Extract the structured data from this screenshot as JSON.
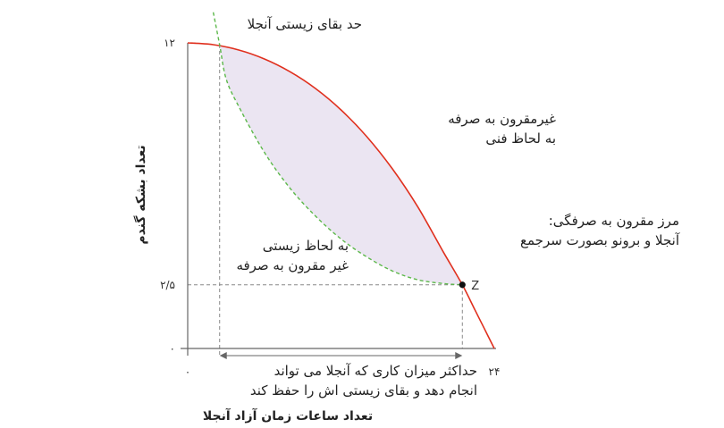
{
  "chart_data": {
    "type": "line",
    "xlabel": "تعداد ساعات زمان آزاد آنجلا",
    "ylabel": "تعداد بشکه گندم",
    "x_ticks": [
      {
        "value": 0,
        "label": "۰"
      },
      {
        "value": 24,
        "label": "۲۴"
      }
    ],
    "y_ticks": [
      {
        "value": 0,
        "label": "۰"
      },
      {
        "value": 2.5,
        "label": "۲/۵"
      },
      {
        "value": 12,
        "label": "۱۲"
      }
    ],
    "xlim": [
      0,
      24
    ],
    "ylim": [
      0,
      12
    ],
    "frontier": {
      "color": "#e0301e",
      "points": [
        [
          0,
          12
        ],
        [
          2,
          11.93
        ],
        [
          4,
          11.72
        ],
        [
          6,
          11.37
        ],
        [
          8,
          10.87
        ],
        [
          10,
          10.21
        ],
        [
          12,
          9.37
        ],
        [
          14,
          8.33
        ],
        [
          16,
          7.07
        ],
        [
          18,
          5.57
        ],
        [
          20,
          3.8
        ],
        [
          21.5,
          2.5
        ],
        [
          22.5,
          1.5
        ],
        [
          23.2,
          0.8
        ],
        [
          24,
          0
        ]
      ]
    },
    "survival_limit": {
      "color": "#5cb84a",
      "points": [
        [
          2,
          13.2
        ],
        [
          2.5,
          11.93
        ],
        [
          3,
          10.6
        ],
        [
          4,
          9.5
        ],
        [
          6,
          7.7
        ],
        [
          8,
          6.3
        ],
        [
          10,
          5.2
        ],
        [
          12,
          4.3
        ],
        [
          14,
          3.6
        ],
        [
          16,
          3.05
        ],
        [
          18,
          2.7
        ],
        [
          20,
          2.55
        ],
        [
          21.5,
          2.5
        ]
      ]
    },
    "feasible_region_color": "#ebe5f2",
    "point_Z": {
      "x": 21.5,
      "y": 2.5,
      "label": "Z"
    },
    "min_hours_line_x": 2.5,
    "annotations": {
      "survival_limit_label": "حد بقای زیستی آنجلا",
      "technically_infeasible": [
        "غیرمقرون به صرفه",
        "به لحاظ فنی"
      ],
      "frontier_label": [
        "مرز مقرون به صرفگی:",
        "آنجلا و برونو بصورت سرجمع"
      ],
      "biologically_infeasible": [
        "به لحاظ زیستی",
        "غیر مقرون به صرفه"
      ],
      "max_work_label": [
        "حداکثر میزان کاری که آنجلا می تواند",
        "انجام دهد و بقای زیستی اش را حفظ کند"
      ]
    }
  }
}
